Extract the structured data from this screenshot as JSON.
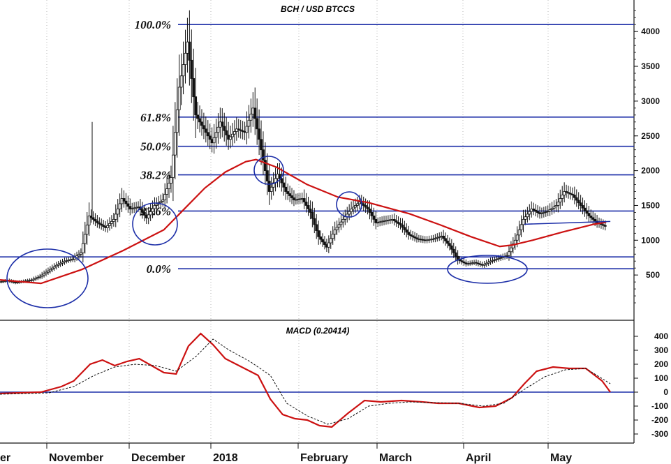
{
  "chart_data": [
    {
      "type": "candlestick",
      "title": "BCH / USD BTCCS",
      "ylim": [
        0,
        4400
      ],
      "y_ticks": [
        "500",
        "1000",
        "1500",
        "2000",
        "2500",
        "3000",
        "3500",
        "4000"
      ],
      "y_tick_values": [
        500,
        1000,
        1500,
        2000,
        2500,
        3000,
        3500,
        4000
      ],
      "x_labels": [
        "November",
        "December",
        "2018",
        "February",
        "March",
        "April",
        "May"
      ],
      "x_label_fragment_left": "er",
      "grid": "vertical-dashed",
      "fibonacci_levels": [
        {
          "label": "100.0%",
          "price": 4100
        },
        {
          "label": "61.8%",
          "price": 2770
        },
        {
          "label": "50.0%",
          "price": 2350
        },
        {
          "label": "38.2%",
          "price": 1940
        },
        {
          "label": "23.6%",
          "price": 1420
        },
        {
          "label": "0.0%",
          "price": 590
        }
      ],
      "extra_level": {
        "price": 760
      },
      "price_series": [
        {
          "i": 0,
          "close": 400
        },
        {
          "i": 4,
          "close": 420
        },
        {
          "i": 8,
          "close": 390
        },
        {
          "i": 12,
          "close": 410
        },
        {
          "i": 16,
          "close": 430
        },
        {
          "i": 20,
          "close": 480
        },
        {
          "i": 24,
          "close": 560
        },
        {
          "i": 28,
          "close": 640
        },
        {
          "i": 32,
          "close": 700
        },
        {
          "i": 36,
          "close": 730
        },
        {
          "i": 40,
          "close": 820
        },
        {
          "i": 44,
          "close": 1350
        },
        {
          "i": 48,
          "close": 1250
        },
        {
          "i": 52,
          "close": 1180
        },
        {
          "i": 56,
          "close": 1300
        },
        {
          "i": 60,
          "close": 1600
        },
        {
          "i": 64,
          "close": 1450
        },
        {
          "i": 68,
          "close": 1480
        },
        {
          "i": 72,
          "close": 1320
        },
        {
          "i": 76,
          "close": 1500
        },
        {
          "i": 80,
          "close": 1580
        },
        {
          "i": 84,
          "close": 1900
        },
        {
          "i": 88,
          "close": 3200
        },
        {
          "i": 92,
          "close": 3850
        },
        {
          "i": 96,
          "close": 2800
        },
        {
          "i": 100,
          "close": 2600
        },
        {
          "i": 104,
          "close": 2400
        },
        {
          "i": 108,
          "close": 2700
        },
        {
          "i": 112,
          "close": 2450
        },
        {
          "i": 116,
          "close": 2600
        },
        {
          "i": 120,
          "close": 2550
        },
        {
          "i": 124,
          "close": 2900
        },
        {
          "i": 128,
          "close": 2300
        },
        {
          "i": 132,
          "close": 1700
        },
        {
          "i": 136,
          "close": 1950
        },
        {
          "i": 140,
          "close": 1700
        },
        {
          "i": 144,
          "close": 1580
        },
        {
          "i": 148,
          "close": 1600
        },
        {
          "i": 152,
          "close": 1400
        },
        {
          "i": 156,
          "close": 1050
        },
        {
          "i": 160,
          "close": 900
        },
        {
          "i": 164,
          "close": 1150
        },
        {
          "i": 168,
          "close": 1300
        },
        {
          "i": 172,
          "close": 1450
        },
        {
          "i": 176,
          "close": 1550
        },
        {
          "i": 180,
          "close": 1450
        },
        {
          "i": 184,
          "close": 1250
        },
        {
          "i": 188,
          "close": 1280
        },
        {
          "i": 192,
          "close": 1300
        },
        {
          "i": 196,
          "close": 1220
        },
        {
          "i": 200,
          "close": 1080
        },
        {
          "i": 204,
          "close": 1020
        },
        {
          "i": 208,
          "close": 1000
        },
        {
          "i": 212,
          "close": 1020
        },
        {
          "i": 216,
          "close": 1060
        },
        {
          "i": 220,
          "close": 920
        },
        {
          "i": 224,
          "close": 720
        },
        {
          "i": 228,
          "close": 660
        },
        {
          "i": 232,
          "close": 680
        },
        {
          "i": 236,
          "close": 640
        },
        {
          "i": 240,
          "close": 700
        },
        {
          "i": 244,
          "close": 740
        },
        {
          "i": 248,
          "close": 780
        },
        {
          "i": 252,
          "close": 1000
        },
        {
          "i": 256,
          "close": 1300
        },
        {
          "i": 260,
          "close": 1450
        },
        {
          "i": 264,
          "close": 1380
        },
        {
          "i": 268,
          "close": 1420
        },
        {
          "i": 272,
          "close": 1500
        },
        {
          "i": 276,
          "close": 1700
        },
        {
          "i": 280,
          "close": 1650
        },
        {
          "i": 284,
          "close": 1500
        },
        {
          "i": 288,
          "close": 1350
        },
        {
          "i": 292,
          "close": 1250
        },
        {
          "i": 296,
          "close": 1200
        }
      ],
      "moving_average": [
        {
          "i": 0,
          "value": 430
        },
        {
          "i": 20,
          "value": 380
        },
        {
          "i": 40,
          "value": 580
        },
        {
          "i": 60,
          "value": 850
        },
        {
          "i": 80,
          "value": 1150
        },
        {
          "i": 90,
          "value": 1450
        },
        {
          "i": 100,
          "value": 1750
        },
        {
          "i": 110,
          "value": 1980
        },
        {
          "i": 120,
          "value": 2130
        },
        {
          "i": 125,
          "value": 2160
        },
        {
          "i": 135,
          "value": 2050
        },
        {
          "i": 150,
          "value": 1800
        },
        {
          "i": 165,
          "value": 1620
        },
        {
          "i": 180,
          "value": 1540
        },
        {
          "i": 200,
          "value": 1380
        },
        {
          "i": 215,
          "value": 1220
        },
        {
          "i": 230,
          "value": 1050
        },
        {
          "i": 244,
          "value": 910
        },
        {
          "i": 250,
          "value": 930
        },
        {
          "i": 260,
          "value": 1000
        },
        {
          "i": 275,
          "value": 1120
        },
        {
          "i": 290,
          "value": 1230
        },
        {
          "i": 296,
          "value": 1260
        }
      ],
      "trend_line": {
        "from_i": 256,
        "from_value": 1230,
        "to_i": 298,
        "to_value": 1270
      }
    },
    {
      "type": "line",
      "title": "MACD (0.20414)",
      "ylim": [
        -330,
        450
      ],
      "y_ticks": [
        "400",
        "300",
        "200",
        "100",
        "0",
        "-100",
        "-200",
        "-300"
      ],
      "y_tick_values": [
        400,
        300,
        200,
        100,
        0,
        -100,
        -200,
        -300
      ],
      "zero_line": 0,
      "series": [
        {
          "style": "solid-red",
          "points": [
            {
              "i": 0,
              "value": -10
            },
            {
              "i": 20,
              "value": 0
            },
            {
              "i": 30,
              "value": 40
            },
            {
              "i": 36,
              "value": 80
            },
            {
              "i": 44,
              "value": 200
            },
            {
              "i": 50,
              "value": 230
            },
            {
              "i": 56,
              "value": 190
            },
            {
              "i": 62,
              "value": 220
            },
            {
              "i": 68,
              "value": 240
            },
            {
              "i": 74,
              "value": 190
            },
            {
              "i": 80,
              "value": 140
            },
            {
              "i": 86,
              "value": 130
            },
            {
              "i": 92,
              "value": 330
            },
            {
              "i": 98,
              "value": 420
            },
            {
              "i": 104,
              "value": 340
            },
            {
              "i": 110,
              "value": 240
            },
            {
              "i": 118,
              "value": 180
            },
            {
              "i": 126,
              "value": 120
            },
            {
              "i": 132,
              "value": -50
            },
            {
              "i": 138,
              "value": -160
            },
            {
              "i": 144,
              "value": -190
            },
            {
              "i": 150,
              "value": -200
            },
            {
              "i": 156,
              "value": -240
            },
            {
              "i": 162,
              "value": -250
            },
            {
              "i": 170,
              "value": -150
            },
            {
              "i": 178,
              "value": -60
            },
            {
              "i": 186,
              "value": -70
            },
            {
              "i": 196,
              "value": -60
            },
            {
              "i": 206,
              "value": -70
            },
            {
              "i": 214,
              "value": -80
            },
            {
              "i": 224,
              "value": -80
            },
            {
              "i": 234,
              "value": -110
            },
            {
              "i": 242,
              "value": -100
            },
            {
              "i": 250,
              "value": -40
            },
            {
              "i": 256,
              "value": 60
            },
            {
              "i": 262,
              "value": 150
            },
            {
              "i": 270,
              "value": 180
            },
            {
              "i": 278,
              "value": 170
            },
            {
              "i": 286,
              "value": 170
            },
            {
              "i": 294,
              "value": 80
            },
            {
              "i": 298,
              "value": 0
            }
          ]
        },
        {
          "style": "dashed-black",
          "points": [
            {
              "i": 0,
              "value": -15
            },
            {
              "i": 24,
              "value": -5
            },
            {
              "i": 36,
              "value": 40
            },
            {
              "i": 46,
              "value": 120
            },
            {
              "i": 56,
              "value": 180
            },
            {
              "i": 66,
              "value": 200
            },
            {
              "i": 76,
              "value": 190
            },
            {
              "i": 86,
              "value": 150
            },
            {
              "i": 96,
              "value": 260
            },
            {
              "i": 104,
              "value": 380
            },
            {
              "i": 112,
              "value": 300
            },
            {
              "i": 122,
              "value": 220
            },
            {
              "i": 132,
              "value": 120
            },
            {
              "i": 140,
              "value": -80
            },
            {
              "i": 150,
              "value": -170
            },
            {
              "i": 160,
              "value": -230
            },
            {
              "i": 170,
              "value": -190
            },
            {
              "i": 180,
              "value": -100
            },
            {
              "i": 190,
              "value": -80
            },
            {
              "i": 200,
              "value": -70
            },
            {
              "i": 212,
              "value": -75
            },
            {
              "i": 224,
              "value": -80
            },
            {
              "i": 236,
              "value": -100
            },
            {
              "i": 246,
              "value": -80
            },
            {
              "i": 256,
              "value": 20
            },
            {
              "i": 266,
              "value": 110
            },
            {
              "i": 276,
              "value": 160
            },
            {
              "i": 286,
              "value": 170
            },
            {
              "i": 298,
              "value": 60
            }
          ]
        }
      ]
    }
  ],
  "colors": {
    "fib_line": "#1c2ea8",
    "circle": "#1c2ea8",
    "moving_average": "#cc1111",
    "macd_line": "#cc1111",
    "signal_line": "#111111",
    "candle": "#111111",
    "grid": "#999999",
    "zero_line": "#1c2ea8"
  }
}
